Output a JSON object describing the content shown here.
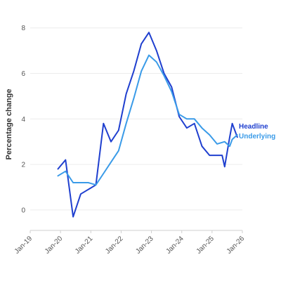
{
  "chart_data": {
    "type": "line",
    "ylabel": "Percentage change",
    "xlabel": "",
    "ylim": [
      -0.9,
      8.3
    ],
    "xlim": [
      "2019-01",
      "2026-01"
    ],
    "yticks": [
      0,
      2,
      4,
      6,
      8
    ],
    "xticks": [
      {
        "value": "2019-01",
        "label": "Jan-19"
      },
      {
        "value": "2020-01",
        "label": "Jan-20"
      },
      {
        "value": "2021-01",
        "label": "Jan-21"
      },
      {
        "value": "2022-01",
        "label": "Jan-22"
      },
      {
        "value": "2023-01",
        "label": "Jan-23"
      },
      {
        "value": "2024-01",
        "label": "Jan-24"
      },
      {
        "value": "2025-01",
        "label": "Jan-25"
      },
      {
        "value": "2026-01",
        "label": "Jan-26"
      }
    ],
    "grid": true,
    "legend": "inline-right",
    "series": [
      {
        "name": "Headline",
        "color": "#1f3fcf",
        "x": [
          "2019-12",
          "2020-03",
          "2020-06",
          "2020-09",
          "2020-12",
          "2021-03",
          "2021-06",
          "2021-09",
          "2021-12",
          "2022-03",
          "2022-06",
          "2022-09",
          "2022-12",
          "2023-03",
          "2023-06",
          "2023-09",
          "2023-12",
          "2024-03",
          "2024-06",
          "2024-09",
          "2024-12",
          "2025-03",
          "2025-05",
          "2025-06",
          "2025-08",
          "2025-09",
          "2025-11"
        ],
        "values": [
          1.8,
          2.2,
          -0.3,
          0.7,
          0.9,
          1.1,
          3.8,
          3.0,
          3.5,
          5.1,
          6.1,
          7.3,
          7.8,
          7.0,
          6.0,
          5.4,
          4.1,
          3.6,
          3.8,
          2.8,
          2.4,
          2.4,
          2.4,
          1.9,
          3.2,
          3.8,
          3.2
        ]
      },
      {
        "name": "Underlying",
        "color": "#3a9be8",
        "x": [
          "2019-12",
          "2020-03",
          "2020-06",
          "2020-09",
          "2020-12",
          "2021-03",
          "2021-06",
          "2021-09",
          "2021-12",
          "2022-03",
          "2022-06",
          "2022-09",
          "2022-12",
          "2023-03",
          "2023-06",
          "2023-09",
          "2023-12",
          "2024-03",
          "2024-06",
          "2024-09",
          "2024-12",
          "2025-03",
          "2025-06",
          "2025-08",
          "2025-09",
          "2025-11"
        ],
        "values": [
          1.5,
          1.7,
          1.2,
          1.2,
          1.2,
          1.1,
          1.6,
          2.1,
          2.6,
          3.8,
          4.9,
          6.1,
          6.8,
          6.5,
          5.9,
          5.2,
          4.2,
          4.0,
          4.0,
          3.6,
          3.3,
          2.9,
          3.0,
          2.8,
          3.1,
          3.3
        ]
      }
    ]
  }
}
